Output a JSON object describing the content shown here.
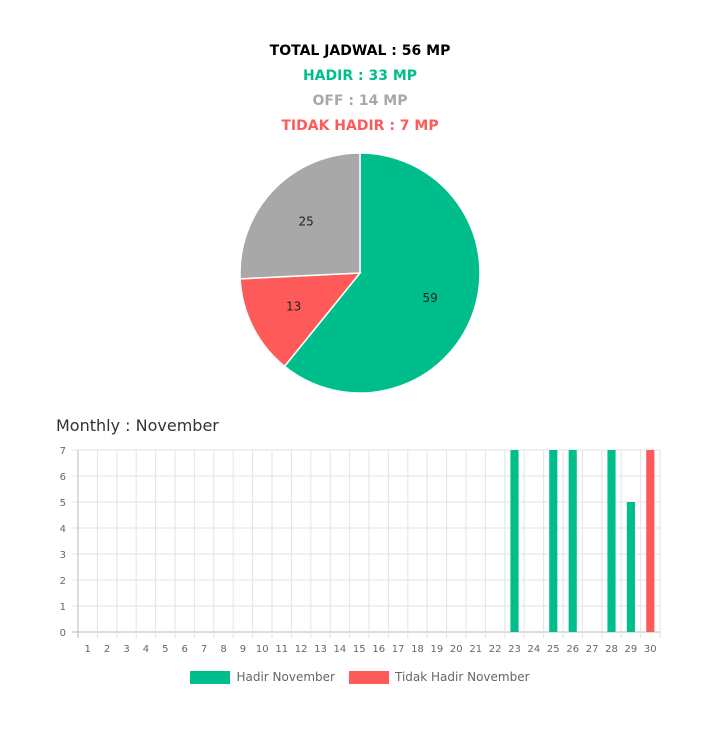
{
  "summary": {
    "total": "TOTAL JADWAL : 56 MP",
    "hadir": "HADIR : 33 MP",
    "off": "OFF : 14 MP",
    "tidak_hadir": "TIDAK HADIR : 7 MP"
  },
  "colors": {
    "hadir": "#00be8c",
    "off": "#a8a8a8",
    "tidak_hadir": "#ff5a5a"
  },
  "monthly_title": "Monthly : November",
  "chart_data": [
    {
      "type": "pie",
      "slices": [
        {
          "label": "59",
          "value": 59,
          "color": "#00be8c"
        },
        {
          "label": "13",
          "value": 13,
          "color": "#ff5a5a"
        },
        {
          "label": "25",
          "value": 25,
          "color": "#a8a8a8"
        }
      ]
    },
    {
      "type": "bar",
      "categories": [
        "1",
        "2",
        "3",
        "4",
        "5",
        "6",
        "7",
        "8",
        "9",
        "10",
        "11",
        "12",
        "13",
        "14",
        "15",
        "16",
        "17",
        "18",
        "19",
        "20",
        "21",
        "22",
        "23",
        "24",
        "25",
        "26",
        "27",
        "28",
        "29",
        "30"
      ],
      "series": [
        {
          "name": "Hadir November",
          "color": "#00be8c",
          "values": [
            0,
            0,
            0,
            0,
            0,
            0,
            0,
            0,
            0,
            0,
            0,
            0,
            0,
            0,
            0,
            0,
            0,
            0,
            0,
            0,
            0,
            0,
            7,
            0,
            7,
            7,
            0,
            7,
            5,
            0
          ]
        },
        {
          "name": "Tidak Hadir November",
          "color": "#ff5a5a",
          "values": [
            0,
            0,
            0,
            0,
            0,
            0,
            0,
            0,
            0,
            0,
            0,
            0,
            0,
            0,
            0,
            0,
            0,
            0,
            0,
            0,
            0,
            0,
            0,
            0,
            0,
            0,
            0,
            0,
            0,
            7
          ]
        }
      ],
      "yticks": [
        0,
        1,
        2,
        3,
        4,
        5,
        6,
        7
      ],
      "ylim": [
        0,
        7
      ],
      "grid": true,
      "legend": "bottom"
    }
  ]
}
